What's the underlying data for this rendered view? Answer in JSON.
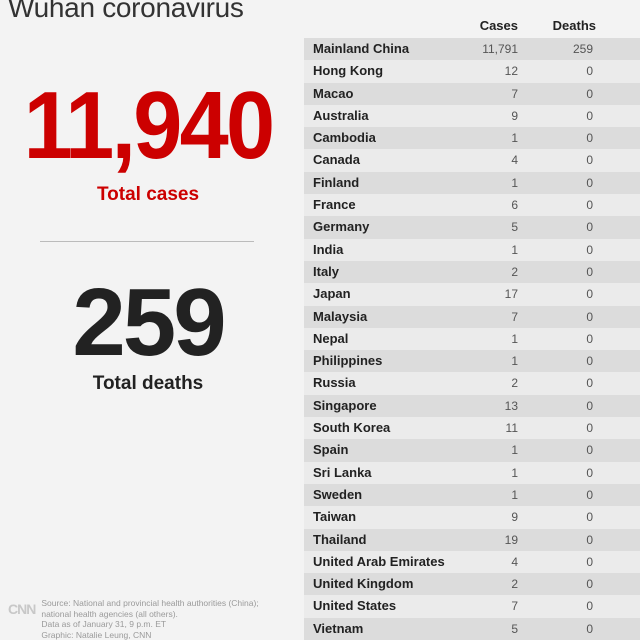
{
  "title": "Wuhan coronavirus",
  "summary": {
    "total_cases_value": "11,940",
    "total_cases_label": "Total cases",
    "total_deaths_value": "259",
    "total_deaths_label": "Total deaths"
  },
  "table": {
    "headers": {
      "cases": "Cases",
      "deaths": "Deaths"
    },
    "rows": [
      {
        "country": "Mainland China",
        "cases": "11,791",
        "deaths": "259"
      },
      {
        "country": "Hong Kong",
        "cases": "12",
        "deaths": "0"
      },
      {
        "country": "Macao",
        "cases": "7",
        "deaths": "0"
      },
      {
        "country": "Australia",
        "cases": "9",
        "deaths": "0"
      },
      {
        "country": "Cambodia",
        "cases": "1",
        "deaths": "0"
      },
      {
        "country": "Canada",
        "cases": "4",
        "deaths": "0"
      },
      {
        "country": "Finland",
        "cases": "1",
        "deaths": "0"
      },
      {
        "country": "France",
        "cases": "6",
        "deaths": "0"
      },
      {
        "country": "Germany",
        "cases": "5",
        "deaths": "0"
      },
      {
        "country": "India",
        "cases": "1",
        "deaths": "0"
      },
      {
        "country": "Italy",
        "cases": "2",
        "deaths": "0"
      },
      {
        "country": "Japan",
        "cases": "17",
        "deaths": "0"
      },
      {
        "country": "Malaysia",
        "cases": "7",
        "deaths": "0"
      },
      {
        "country": "Nepal",
        "cases": "1",
        "deaths": "0"
      },
      {
        "country": "Philippines",
        "cases": "1",
        "deaths": "0"
      },
      {
        "country": "Russia",
        "cases": "2",
        "deaths": "0"
      },
      {
        "country": "Singapore",
        "cases": "13",
        "deaths": "0"
      },
      {
        "country": "South Korea",
        "cases": "11",
        "deaths": "0"
      },
      {
        "country": "Spain",
        "cases": "1",
        "deaths": "0"
      },
      {
        "country": "Sri Lanka",
        "cases": "1",
        "deaths": "0"
      },
      {
        "country": "Sweden",
        "cases": "1",
        "deaths": "0"
      },
      {
        "country": "Taiwan",
        "cases": "9",
        "deaths": "0"
      },
      {
        "country": "Thailand",
        "cases": "19",
        "deaths": "0"
      },
      {
        "country": "United Arab Emirates",
        "cases": "4",
        "deaths": "0"
      },
      {
        "country": "United Kingdom",
        "cases": "2",
        "deaths": "0"
      },
      {
        "country": "United States",
        "cases": "7",
        "deaths": "0"
      },
      {
        "country": "Vietnam",
        "cases": "5",
        "deaths": "0"
      }
    ]
  },
  "footer": {
    "logo": "CNN",
    "source_lines": [
      "Source: National and provincial health authorities (China);",
      "national health agencies (all others).",
      "Data as of January 31, 9 p.m. ET",
      "Graphic: Natalie Leung, CNN"
    ]
  },
  "colors": {
    "accent_red": "#cc0000",
    "row_dark": "#dcdcdc",
    "row_light": "#ebebeb",
    "background": "#f3f3f3"
  }
}
